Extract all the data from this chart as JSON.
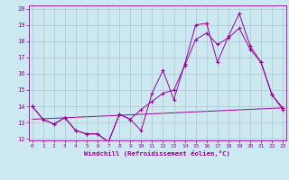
{
  "xlabel": "Windchill (Refroidissement éolien,°C)",
  "bg_color": "#cce8f0",
  "line_color": "#990099",
  "xmin": 0,
  "xmax": 23,
  "ymin": 12,
  "ymax": 20,
  "yticks": [
    12,
    13,
    14,
    15,
    16,
    17,
    18,
    19,
    20
  ],
  "xticks": [
    0,
    1,
    2,
    3,
    4,
    5,
    6,
    7,
    8,
    9,
    10,
    11,
    12,
    13,
    14,
    15,
    16,
    17,
    18,
    19,
    20,
    21,
    22,
    23
  ],
  "line1_x": [
    0,
    1,
    2,
    3,
    4,
    5,
    6,
    7,
    8,
    9,
    10,
    11,
    12,
    13,
    14,
    15,
    16,
    17,
    18,
    19,
    20,
    21,
    22,
    23
  ],
  "line1_y": [
    14.0,
    13.2,
    12.9,
    13.3,
    12.5,
    12.3,
    12.3,
    11.8,
    13.5,
    13.2,
    12.5,
    14.8,
    16.2,
    14.4,
    16.6,
    19.0,
    19.1,
    16.7,
    18.3,
    19.7,
    17.7,
    16.7,
    14.7,
    13.9
  ],
  "line2_x": [
    0,
    1,
    2,
    3,
    4,
    5,
    6,
    7,
    8,
    9,
    10,
    11,
    12,
    13,
    14,
    15,
    16,
    17,
    18,
    19,
    20,
    21,
    22,
    23
  ],
  "line2_y": [
    14.0,
    13.2,
    12.9,
    13.3,
    12.5,
    12.3,
    12.3,
    11.8,
    13.5,
    13.2,
    13.8,
    14.3,
    14.8,
    15.0,
    16.5,
    18.1,
    18.5,
    17.8,
    18.2,
    18.8,
    17.5,
    16.7,
    14.7,
    13.8
  ],
  "line3_x": [
    0,
    23
  ],
  "line3_y": [
    13.2,
    13.9
  ]
}
